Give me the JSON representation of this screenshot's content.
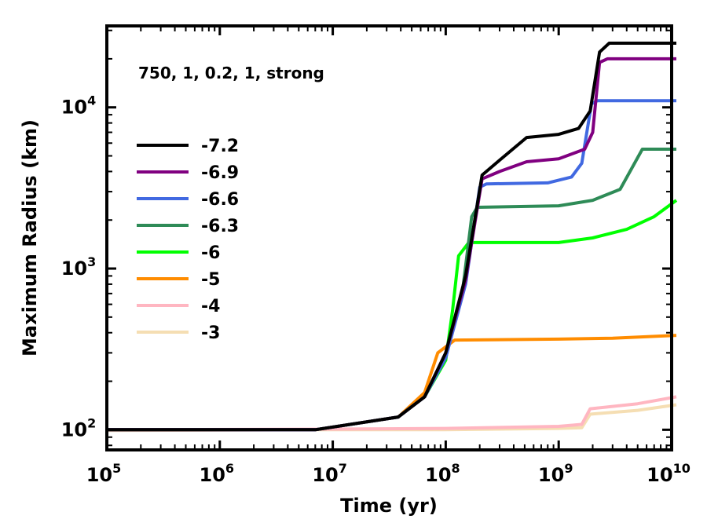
{
  "chart_data": {
    "type": "line",
    "title": "",
    "annotation": "750, 1, 0.2, 1, strong",
    "xlabel": "Time (yr)",
    "ylabel": "Maximum Radius (km)",
    "xscale": "log",
    "yscale": "log",
    "xlim": [
      100000,
      10000000000
    ],
    "ylim": [
      75,
      32000
    ],
    "x_ticks": [
      {
        "value": 100000,
        "base": "10",
        "exp": "5"
      },
      {
        "value": 1000000,
        "base": "10",
        "exp": "6"
      },
      {
        "value": 10000000,
        "base": "10",
        "exp": "7"
      },
      {
        "value": 100000000,
        "base": "10",
        "exp": "8"
      },
      {
        "value": 1000000000,
        "base": "10",
        "exp": "9"
      },
      {
        "value": 10000000000,
        "base": "10",
        "exp": "10"
      }
    ],
    "y_ticks": [
      {
        "value": 100,
        "base": "10",
        "exp": "2"
      },
      {
        "value": 1000,
        "base": "10",
        "exp": "3"
      },
      {
        "value": 10000,
        "base": "10",
        "exp": "4"
      }
    ],
    "legend_position": "upper-left",
    "series": [
      {
        "name": "-7.2",
        "color": "#000000",
        "points": [
          [
            100000.0,
            100
          ],
          [
            7000000.0,
            100
          ],
          [
            38000000.0,
            120
          ],
          [
            65000000.0,
            160
          ],
          [
            100000000.0,
            300
          ],
          [
            150000000.0,
            900
          ],
          [
            210000000.0,
            3800
          ],
          [
            300000000.0,
            4700
          ],
          [
            520000000.0,
            6500
          ],
          [
            1000000000.0,
            6800
          ],
          [
            1500000000.0,
            7400
          ],
          [
            1900000000.0,
            9500
          ],
          [
            2300000000.0,
            22000
          ],
          [
            2800000000.0,
            25000
          ],
          [
            11000000000.0,
            25000
          ]
        ]
      },
      {
        "name": "-6.9",
        "color": "#800080",
        "points": [
          [
            100000.0,
            100
          ],
          [
            7000000.0,
            100
          ],
          [
            38000000.0,
            120
          ],
          [
            65000000.0,
            160
          ],
          [
            100000000.0,
            300
          ],
          [
            150000000.0,
            850
          ],
          [
            210000000.0,
            3600
          ],
          [
            300000000.0,
            4000
          ],
          [
            520000000.0,
            4600
          ],
          [
            1000000000.0,
            4800
          ],
          [
            1700000000.0,
            5500
          ],
          [
            2000000000.0,
            7000
          ],
          [
            2300000000.0,
            19000
          ],
          [
            2700000000.0,
            20000
          ],
          [
            11000000000.0,
            20000
          ]
        ]
      },
      {
        "name": "-6.6",
        "color": "#4169e1",
        "points": [
          [
            100000.0,
            100
          ],
          [
            7000000.0,
            100
          ],
          [
            38000000.0,
            120
          ],
          [
            65000000.0,
            160
          ],
          [
            100000000.0,
            280
          ],
          [
            150000000.0,
            800
          ],
          [
            200000000.0,
            3200
          ],
          [
            230000000.0,
            3350
          ],
          [
            800000000.0,
            3400
          ],
          [
            1300000000.0,
            3700
          ],
          [
            1600000000.0,
            4500
          ],
          [
            1950000000.0,
            10500
          ],
          [
            2200000000.0,
            11000
          ],
          [
            11000000000.0,
            11000
          ]
        ]
      },
      {
        "name": "-6.3",
        "color": "#2e8b57",
        "points": [
          [
            100000.0,
            100
          ],
          [
            7000000.0,
            100
          ],
          [
            38000000.0,
            120
          ],
          [
            65000000.0,
            160
          ],
          [
            100000000.0,
            280
          ],
          [
            140000000.0,
            700
          ],
          [
            170000000.0,
            2100
          ],
          [
            190000000.0,
            2400
          ],
          [
            1000000000.0,
            2450
          ],
          [
            2000000000.0,
            2650
          ],
          [
            3500000000.0,
            3100
          ],
          [
            5500000000.0,
            5500
          ],
          [
            11000000000.0,
            5500
          ]
        ]
      },
      {
        "name": "-6",
        "color": "#00ff00",
        "points": [
          [
            100000.0,
            100
          ],
          [
            7000000.0,
            100
          ],
          [
            38000000.0,
            120
          ],
          [
            65000000.0,
            160
          ],
          [
            100000000.0,
            270
          ],
          [
            115000000.0,
            550
          ],
          [
            130000000.0,
            1200
          ],
          [
            160000000.0,
            1450
          ],
          [
            1000000000.0,
            1450
          ],
          [
            2000000000.0,
            1550
          ],
          [
            4000000000.0,
            1750
          ],
          [
            7000000000.0,
            2100
          ],
          [
            11000000000.0,
            2650
          ]
        ]
      },
      {
        "name": "-5",
        "color": "#ff8c00",
        "points": [
          [
            100000.0,
            100
          ],
          [
            7000000.0,
            100
          ],
          [
            38000000.0,
            120
          ],
          [
            65000000.0,
            170
          ],
          [
            85000000.0,
            300
          ],
          [
            120000000.0,
            360
          ],
          [
            1000000000.0,
            365
          ],
          [
            3000000000.0,
            370
          ],
          [
            11000000000.0,
            385
          ]
        ]
      },
      {
        "name": "-4",
        "color": "#ffb6c1",
        "points": [
          [
            100000.0,
            100
          ],
          [
            10000000.0,
            101
          ],
          [
            100000000.0,
            102
          ],
          [
            1000000000.0,
            105
          ],
          [
            1600000000.0,
            108
          ],
          [
            1900000000.0,
            135
          ],
          [
            5000000000.0,
            145
          ],
          [
            11000000000.0,
            160
          ]
        ]
      },
      {
        "name": "-3",
        "color": "#f5deb3",
        "points": [
          [
            100000.0,
            99
          ],
          [
            10000000.0,
            100
          ],
          [
            100000000.0,
            100
          ],
          [
            1000000000.0,
            102
          ],
          [
            1600000000.0,
            103
          ],
          [
            1900000000.0,
            125
          ],
          [
            5000000000.0,
            132
          ],
          [
            11000000000.0,
            143
          ]
        ]
      }
    ]
  }
}
